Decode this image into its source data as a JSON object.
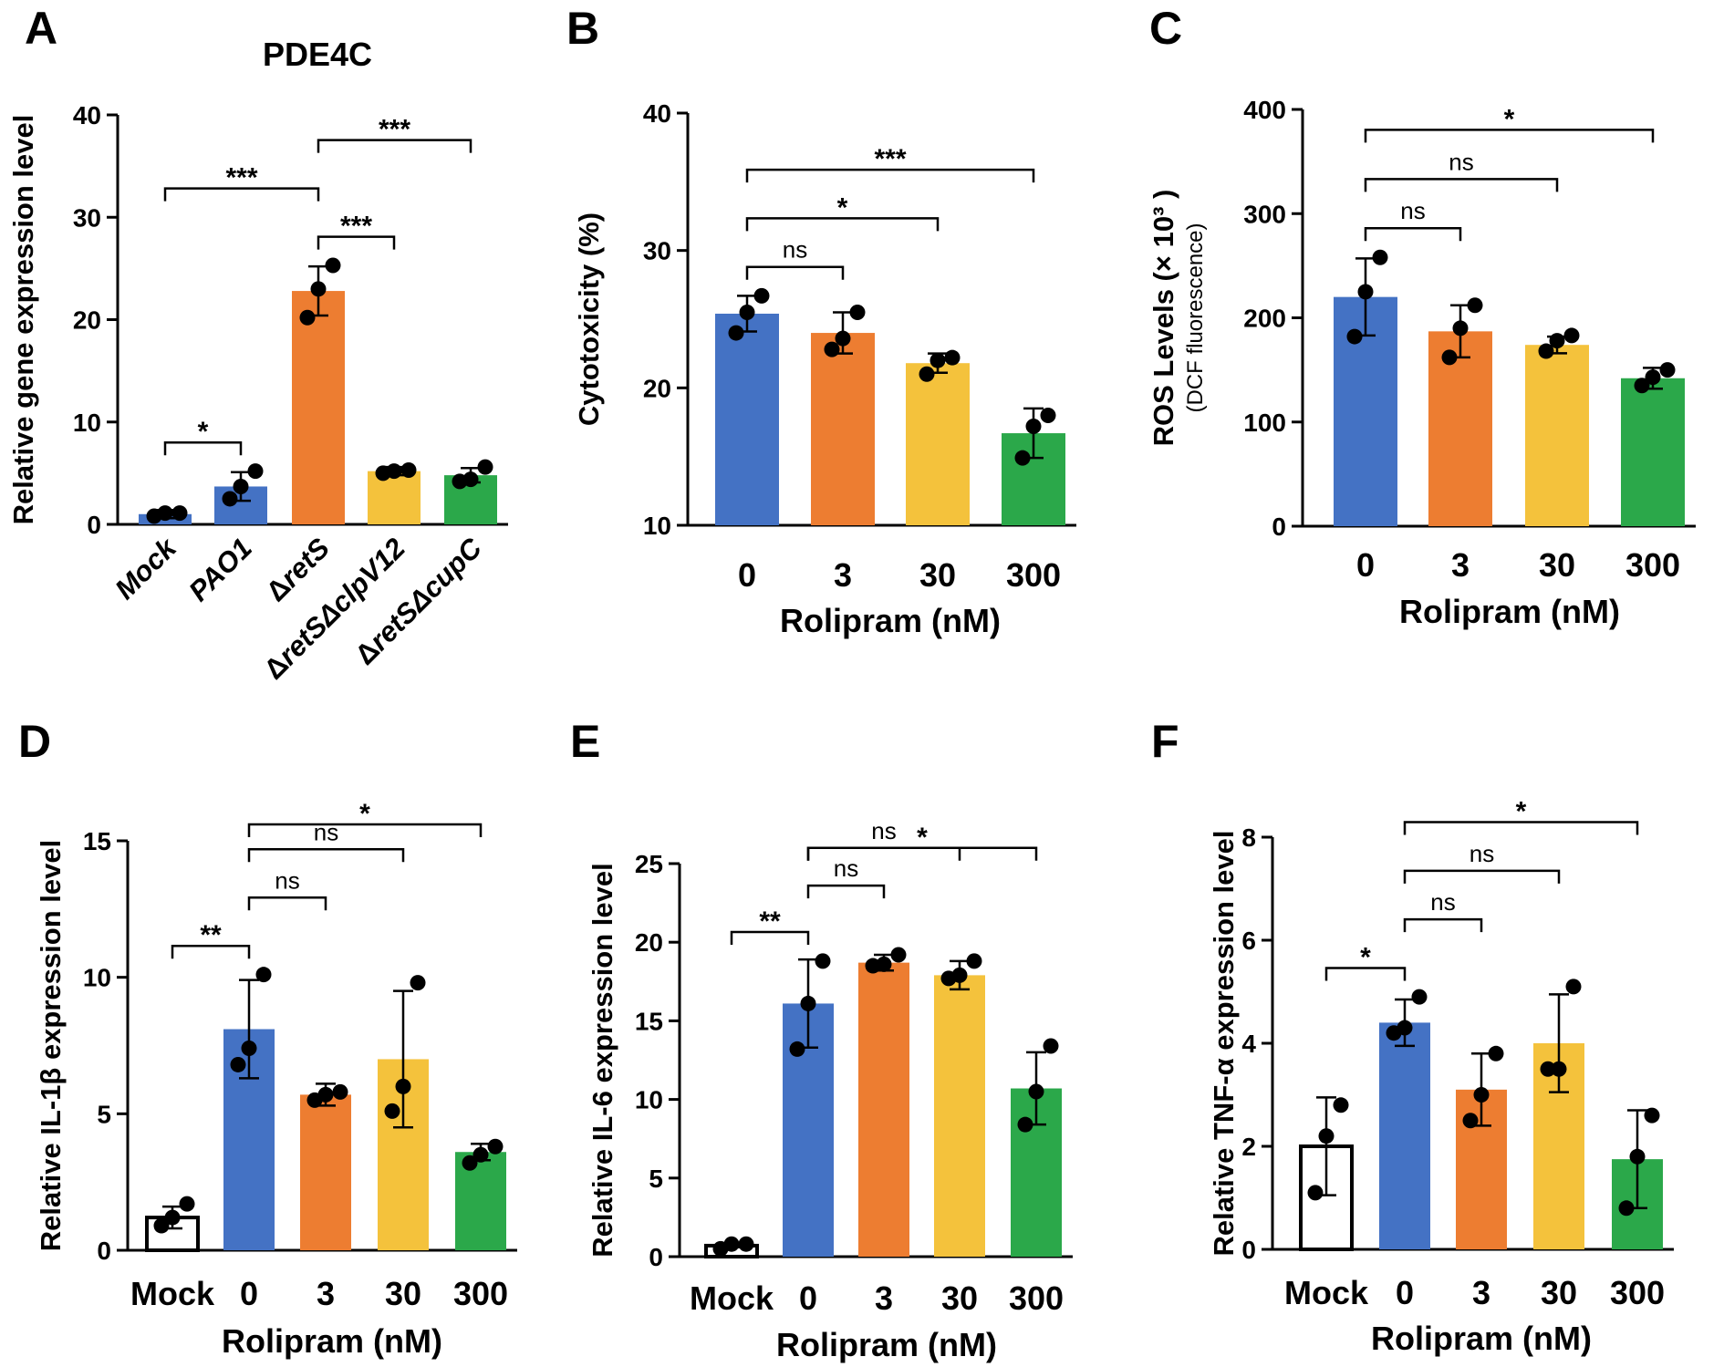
{
  "chart_data": [
    {
      "panel": "A",
      "type": "bar",
      "title": "PDE4C",
      "ylabel": "Relative gene expression level",
      "ylabel_sub": "",
      "xlabel": "",
      "ylim": [
        0,
        40
      ],
      "yticks": [
        "0",
        "10",
        "20",
        "30",
        "40"
      ],
      "categories": [
        {
          "lead": "",
          "ital": "Mock"
        },
        {
          "lead": "",
          "ital": "PAO1"
        },
        {
          "lead": "Δ",
          "ital": "retS"
        },
        {
          "lead": "Δ",
          "ital": "retSΔclpV12"
        },
        {
          "lead": "Δ",
          "ital": "retSΔcupC"
        }
      ],
      "values": [
        1.0,
        3.7,
        22.8,
        5.2,
        4.8
      ],
      "errors": [
        0.4,
        1.4,
        2.4,
        0.4,
        0.7
      ],
      "points": [
        [
          0.8,
          1.1,
          1.1
        ],
        [
          2.5,
          3.7,
          5.2
        ],
        [
          20.2,
          23.0,
          25.3
        ],
        [
          5.0,
          5.2,
          5.3
        ],
        [
          4.2,
          4.4,
          5.6
        ]
      ],
      "colors": [
        "#4472c4",
        "#4472c4",
        "#ed7d31",
        "#f4c23c",
        "#2ba84a"
      ],
      "open_first": false,
      "comparisons": [
        {
          "from": 0,
          "to": 1,
          "label": "*"
        },
        {
          "from": 0,
          "to": 2,
          "label": "***"
        },
        {
          "from": 2,
          "to": 3,
          "label": "***"
        },
        {
          "from": 2,
          "to": 4,
          "label": "***"
        }
      ]
    },
    {
      "panel": "B",
      "type": "bar",
      "title": "",
      "ylabel": "Cytotoxicity (%)",
      "ylabel_sub": "",
      "xlabel": "Rolipram (nM)",
      "ylim": [
        10,
        40
      ],
      "yticks": [
        "10",
        "20",
        "30",
        "40"
      ],
      "categories": [
        "0",
        "3",
        "30",
        "300"
      ],
      "values": [
        25.4,
        24.0,
        21.8,
        16.7
      ],
      "errors": [
        1.3,
        1.5,
        0.7,
        1.8
      ],
      "points": [
        [
          24.0,
          25.5,
          26.7
        ],
        [
          22.8,
          23.6,
          25.5
        ],
        [
          21.0,
          22.0,
          22.2
        ],
        [
          14.9,
          17.2,
          18.0
        ]
      ],
      "colors": [
        "#4472c4",
        "#ed7d31",
        "#f4c23c",
        "#2ba84a"
      ],
      "open_first": false,
      "comparisons": [
        {
          "from": 0,
          "to": 1,
          "label": "ns"
        },
        {
          "from": 0,
          "to": 2,
          "label": "*"
        },
        {
          "from": 0,
          "to": 3,
          "label": "***"
        }
      ]
    },
    {
      "panel": "C",
      "type": "bar",
      "title": "",
      "ylabel": "ROS Levels (× 10³ )",
      "ylabel_sub": "(DCF fluorescence)",
      "xlabel": "Rolipram (nM)",
      "ylim": [
        0,
        400
      ],
      "yticks": [
        "0",
        "100",
        "200",
        "300",
        "400"
      ],
      "categories": [
        "0",
        "3",
        "30",
        "300"
      ],
      "values": [
        220,
        187,
        174,
        142
      ],
      "errors": [
        37,
        25,
        8,
        10
      ],
      "points": [
        [
          182,
          225,
          258
        ],
        [
          162,
          190,
          212
        ],
        [
          168,
          178,
          183
        ],
        [
          135,
          143,
          150
        ]
      ],
      "colors": [
        "#4472c4",
        "#ed7d31",
        "#f4c23c",
        "#2ba84a"
      ],
      "open_first": false,
      "comparisons": [
        {
          "from": 0,
          "to": 1,
          "label": "ns"
        },
        {
          "from": 0,
          "to": 2,
          "label": "ns"
        },
        {
          "from": 0,
          "to": 3,
          "label": "*"
        }
      ]
    },
    {
      "panel": "D",
      "type": "bar",
      "title": "",
      "ylabel": "Relative IL-1β expression level",
      "ylabel_sub": "",
      "xlabel": "Rolipram (nM)",
      "ylim": [
        0,
        15
      ],
      "yticks": [
        "0",
        "5",
        "10",
        "15"
      ],
      "categories": [
        "Mock",
        "0",
        "3",
        "30",
        "300"
      ],
      "values": [
        1.2,
        8.1,
        5.7,
        7.0,
        3.6
      ],
      "errors": [
        0.4,
        1.8,
        0.4,
        2.5,
        0.3
      ],
      "points": [
        [
          0.9,
          1.2,
          1.7
        ],
        [
          6.8,
          7.4,
          10.1
        ],
        [
          5.5,
          5.7,
          5.8
        ],
        [
          5.1,
          6.0,
          9.8
        ],
        [
          3.2,
          3.5,
          3.8
        ]
      ],
      "colors": [
        "#ffffff",
        "#4472c4",
        "#ed7d31",
        "#f4c23c",
        "#2ba84a"
      ],
      "open_first": true,
      "comparisons": [
        {
          "from": 0,
          "to": 1,
          "label": "**"
        },
        {
          "from": 1,
          "to": 2,
          "label": "ns"
        },
        {
          "from": 1,
          "to": 3,
          "label": "ns"
        },
        {
          "from": 1,
          "to": 4,
          "label": "*"
        }
      ]
    },
    {
      "panel": "E",
      "type": "bar",
      "title": "",
      "ylabel": "Relative IL-6 expression level",
      "ylabel_sub": "",
      "xlabel": "Rolipram (nM)",
      "ylim": [
        0,
        25
      ],
      "yticks": [
        "0",
        "5",
        "10",
        "15",
        "20",
        "25"
      ],
      "categories": [
        "Mock",
        "0",
        "3",
        "30",
        "300"
      ],
      "values": [
        0.7,
        16.1,
        18.7,
        17.9,
        10.7
      ],
      "errors": [
        0.1,
        2.8,
        0.5,
        0.9,
        2.3
      ],
      "points": [
        [
          0.5,
          0.8,
          0.8
        ],
        [
          13.2,
          16.1,
          18.8
        ],
        [
          18.5,
          18.6,
          19.2
        ],
        [
          17.7,
          17.9,
          18.8
        ],
        [
          8.4,
          10.5,
          13.4
        ]
      ],
      "colors": [
        "#ffffff",
        "#4472c4",
        "#ed7d31",
        "#f4c23c",
        "#2ba84a"
      ],
      "open_first": true,
      "comparisons": [
        {
          "from": 0,
          "to": 1,
          "label": "**"
        },
        {
          "from": 1,
          "to": 2,
          "label": "ns"
        },
        {
          "from": 1,
          "to": 3,
          "label": "ns"
        },
        {
          "from": 1,
          "to": 4,
          "label": "*"
        }
      ]
    },
    {
      "panel": "F",
      "type": "bar",
      "title": "",
      "ylabel": "Relative TNF-α expression level",
      "ylabel_sub": "",
      "xlabel": "Rolipram (nM)",
      "ylim": [
        0,
        8
      ],
      "yticks": [
        "0",
        "2",
        "4",
        "6",
        "8"
      ],
      "categories": [
        "Mock",
        "0",
        "3",
        "30",
        "300"
      ],
      "values": [
        2.0,
        4.4,
        3.1,
        4.0,
        1.75
      ],
      "errors": [
        0.95,
        0.45,
        0.7,
        0.95,
        0.95
      ],
      "points": [
        [
          1.1,
          2.2,
          2.8
        ],
        [
          4.2,
          4.3,
          4.9
        ],
        [
          2.5,
          3.0,
          3.8
        ],
        [
          3.5,
          3.5,
          5.1
        ],
        [
          0.8,
          1.8,
          2.6
        ]
      ],
      "colors": [
        "#ffffff",
        "#4472c4",
        "#ed7d31",
        "#f4c23c",
        "#2ba84a"
      ],
      "open_first": true,
      "comparisons": [
        {
          "from": 0,
          "to": 1,
          "label": "*"
        },
        {
          "from": 1,
          "to": 2,
          "label": "ns"
        },
        {
          "from": 1,
          "to": 3,
          "label": "ns"
        },
        {
          "from": 1,
          "to": 4,
          "label": "*"
        }
      ]
    }
  ]
}
